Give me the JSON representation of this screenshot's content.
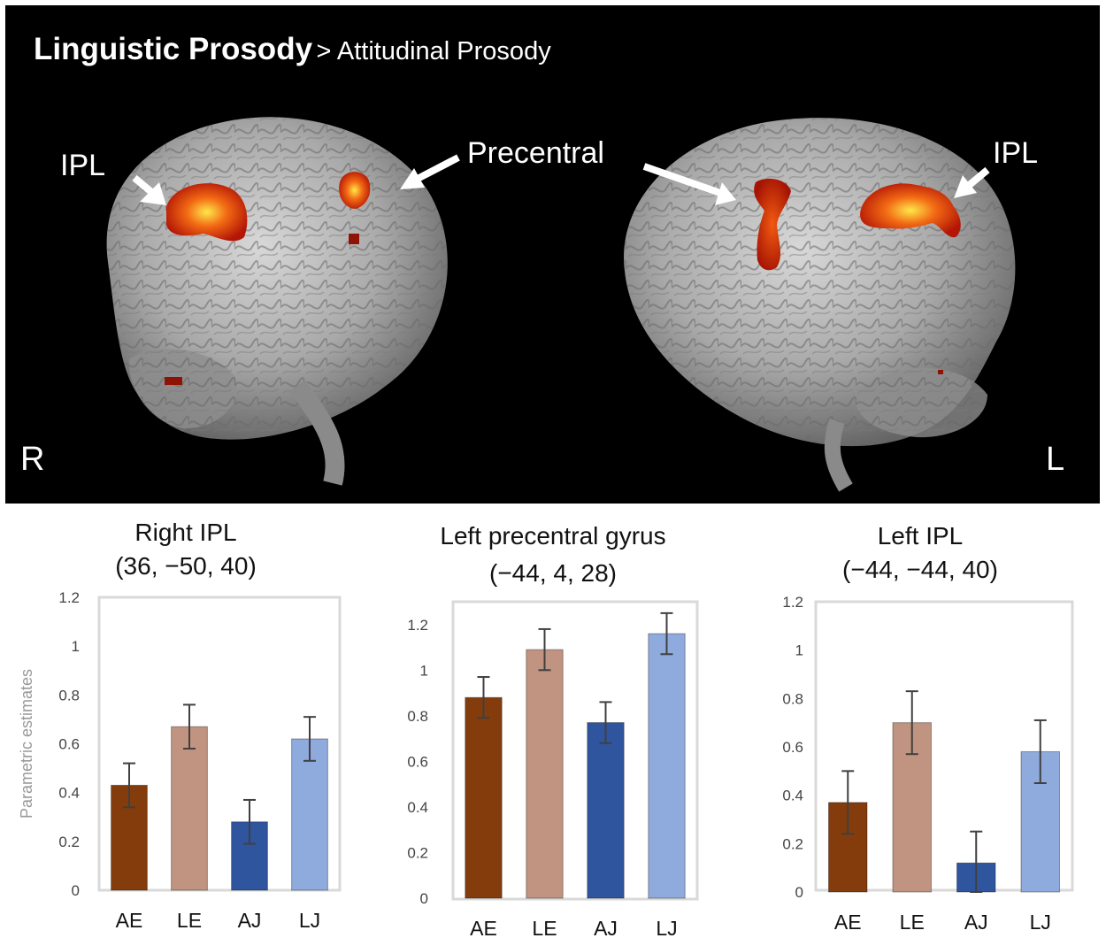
{
  "title": {
    "main": "Linguistic Prosody",
    "sub": "> Attitudinal Prosody"
  },
  "labels": {
    "ipl_right": "IPL",
    "precentral": "Precentral",
    "ipl_left": "IPL",
    "hemisphere_right": "R",
    "hemisphere_left": "L"
  },
  "colors": {
    "AE": "#843C0C",
    "LE": "#C09480",
    "AJ": "#2F559F",
    "LJ": "#8FAADC",
    "frame": "#D9D9D9",
    "error_bar": "#404040"
  },
  "chart_data": [
    {
      "type": "bar",
      "title": "Right IPL",
      "subtitle": "(36, −50, 40)",
      "ylabel": "Parametric estimates",
      "ylim": [
        0,
        1.2
      ],
      "yticks": [
        "0",
        "0.2",
        "0.4",
        "0.6",
        "0.8",
        "1",
        "1.2"
      ],
      "categories": [
        "AE",
        "LE",
        "AJ",
        "LJ"
      ],
      "values": [
        0.43,
        0.67,
        0.28,
        0.62
      ],
      "errors": [
        0.09,
        0.09,
        0.09,
        0.09
      ]
    },
    {
      "type": "bar",
      "title": "Left precentral gyrus",
      "subtitle": "(−44, 4, 28)",
      "ylabel": "",
      "ylim": [
        0,
        1.3
      ],
      "yticks": [
        "0",
        "0.2",
        "0.4",
        "0.6",
        "0.8",
        "1",
        "1.2"
      ],
      "categories": [
        "AE",
        "LE",
        "AJ",
        "LJ"
      ],
      "values": [
        0.88,
        1.09,
        0.77,
        1.16
      ],
      "errors": [
        0.09,
        0.09,
        0.09,
        0.09
      ]
    },
    {
      "type": "bar",
      "title": "Left IPL",
      "subtitle": "(−44, −44, 40)",
      "ylabel": "",
      "ylim": [
        0,
        1.2
      ],
      "yticks": [
        "0",
        "0.2",
        "0.4",
        "0.6",
        "0.8",
        "1",
        "1.2"
      ],
      "categories": [
        "AE",
        "LE",
        "AJ",
        "LJ"
      ],
      "values": [
        0.37,
        0.7,
        0.12,
        0.58
      ],
      "errors": [
        0.13,
        0.13,
        0.13,
        0.13
      ]
    }
  ]
}
